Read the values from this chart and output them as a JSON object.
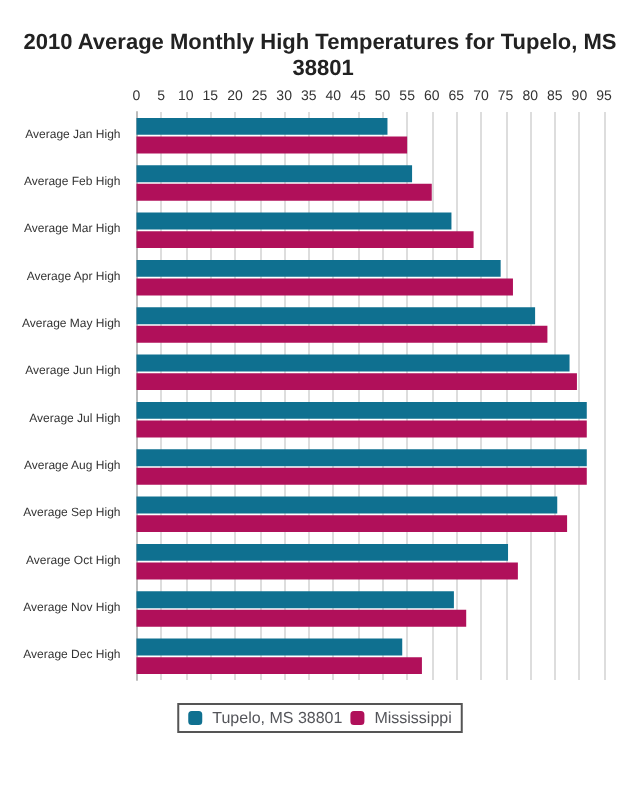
{
  "chart_data": {
    "type": "bar",
    "orientation": "horizontal",
    "title": "2010 Average Monthly High Temperatures for Tupelo, MS 38801",
    "categories": [
      "Average Jan High",
      "Average Feb High",
      "Average Mar High",
      "Average Apr High",
      "Average May High",
      "Average Jun High",
      "Average Jul High",
      "Average Aug High",
      "Average Sep High",
      "Average Oct High",
      "Average Nov High",
      "Average Dec High"
    ],
    "series": [
      {
        "name": "Tupelo, MS 38801",
        "color": "#0f7090",
        "values": [
          51,
          56,
          64,
          74,
          81,
          88,
          91.5,
          91.5,
          85.5,
          75.5,
          64.5,
          54
        ]
      },
      {
        "name": "Mississippi",
        "color": "#b0105a",
        "values": [
          55,
          60,
          68.5,
          76.5,
          83.5,
          89.5,
          91.5,
          91.5,
          87.5,
          77.5,
          67,
          58
        ]
      }
    ],
    "xlim": [
      0,
      95
    ],
    "xticks": [
      0,
      5,
      10,
      15,
      20,
      25,
      30,
      35,
      40,
      45,
      50,
      55,
      60,
      65,
      70,
      75,
      80,
      85,
      90,
      95
    ],
    "grid": "x",
    "legend": "bottom"
  }
}
